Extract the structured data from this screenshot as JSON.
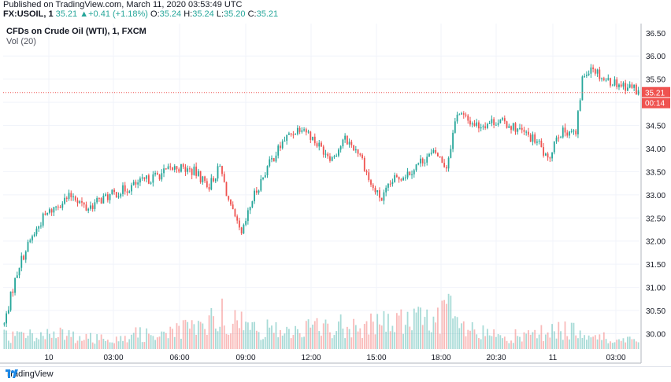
{
  "header": {
    "published": "Published on TradingView.com, March 11, 2020 03:53:49 UTC",
    "symbol": "FX:USOIL, 1",
    "last": "35.21",
    "change": "+0.41 (+1.18%)",
    "o_label": "O:",
    "o_value": "35.24",
    "h_label": "H:",
    "h_value": "35.24",
    "l_label": "L:",
    "l_value": "35.20",
    "c_label": "C:",
    "c_value": "35.21"
  },
  "legend": {
    "title": "CFDs on Crude Oil (WTI), 1, FXCM",
    "volume": "Vol (20)"
  },
  "footer": {
    "brand": "TradingView"
  },
  "colors": {
    "up": "#26a69a",
    "down": "#ef5350",
    "last_price": "#ef5350",
    "grid": "#f0f3fa"
  },
  "chart_data": {
    "type": "candlestick",
    "title": "CFDs on Crude Oil (WTI), 1, FXCM",
    "y_ticks": [
      "36.00",
      "35.50",
      "35.00",
      "34.50",
      "34.00",
      "33.50",
      "33.00",
      "32.50",
      "32.00",
      "31.50",
      "31.00",
      "30.50",
      "30.00"
    ],
    "y_tick_values": [
      36.0,
      35.5,
      35.0,
      34.5,
      34.0,
      33.5,
      33.0,
      32.5,
      32.0,
      31.5,
      31.0,
      30.5,
      30.0
    ],
    "y_top_label": "36.50",
    "ylim": [
      29.6,
      36.7
    ],
    "x_ticks": [
      "10",
      "03:00",
      "06:00",
      "09:00",
      "12:00",
      "15:00",
      "18:00",
      "20:30",
      "11",
      "03:00"
    ],
    "last_price": 35.21,
    "last_price_label": "35.21",
    "countdown_label": "00:14",
    "grid": true,
    "price_path": [
      [
        0,
        30.2
      ],
      [
        3,
        30.8
      ],
      [
        7,
        31.5
      ],
      [
        12,
        32.0
      ],
      [
        18,
        32.5
      ],
      [
        25,
        32.8
      ],
      [
        32,
        33.0
      ],
      [
        38,
        32.7
      ],
      [
        45,
        32.9
      ],
      [
        55,
        33.1
      ],
      [
        65,
        33.3
      ],
      [
        75,
        33.5
      ],
      [
        80,
        33.6
      ],
      [
        88,
        33.5
      ],
      [
        95,
        33.2
      ],
      [
        100,
        33.6
      ],
      [
        105,
        32.7
      ],
      [
        110,
        32.1
      ],
      [
        115,
        32.9
      ],
      [
        122,
        33.6
      ],
      [
        130,
        34.2
      ],
      [
        138,
        34.5
      ],
      [
        145,
        34.1
      ],
      [
        152,
        33.8
      ],
      [
        158,
        34.2
      ],
      [
        165,
        33.9
      ],
      [
        170,
        33.2
      ],
      [
        175,
        32.9
      ],
      [
        180,
        33.3
      ],
      [
        188,
        33.5
      ],
      [
        195,
        33.8
      ],
      [
        200,
        33.9
      ],
      [
        205,
        33.6
      ],
      [
        210,
        34.8
      ],
      [
        215,
        34.6
      ],
      [
        220,
        34.5
      ],
      [
        228,
        34.6
      ],
      [
        235,
        34.5
      ],
      [
        242,
        34.3
      ],
      [
        248,
        34.1
      ],
      [
        252,
        33.7
      ],
      [
        256,
        34.3
      ],
      [
        262,
        34.4
      ],
      [
        265,
        34.3
      ],
      [
        268,
        35.5
      ],
      [
        272,
        35.8
      ],
      [
        278,
        35.5
      ],
      [
        285,
        35.4
      ],
      [
        292,
        35.3
      ],
      [
        294,
        35.21
      ]
    ],
    "volume_ylim": [
      0,
      100
    ],
    "volume_profile": [
      [
        0,
        18
      ],
      [
        20,
        22
      ],
      [
        40,
        15
      ],
      [
        60,
        20
      ],
      [
        80,
        25
      ],
      [
        95,
        35
      ],
      [
        100,
        55
      ],
      [
        105,
        40
      ],
      [
        115,
        30
      ],
      [
        130,
        25
      ],
      [
        150,
        32
      ],
      [
        170,
        35
      ],
      [
        185,
        40
      ],
      [
        200,
        42
      ],
      [
        205,
        60
      ],
      [
        212,
        28
      ],
      [
        225,
        20
      ],
      [
        240,
        18
      ],
      [
        255,
        25
      ],
      [
        265,
        30
      ],
      [
        270,
        20
      ],
      [
        280,
        15
      ],
      [
        294,
        10
      ]
    ],
    "candle_count": 295,
    "seed": 7
  }
}
